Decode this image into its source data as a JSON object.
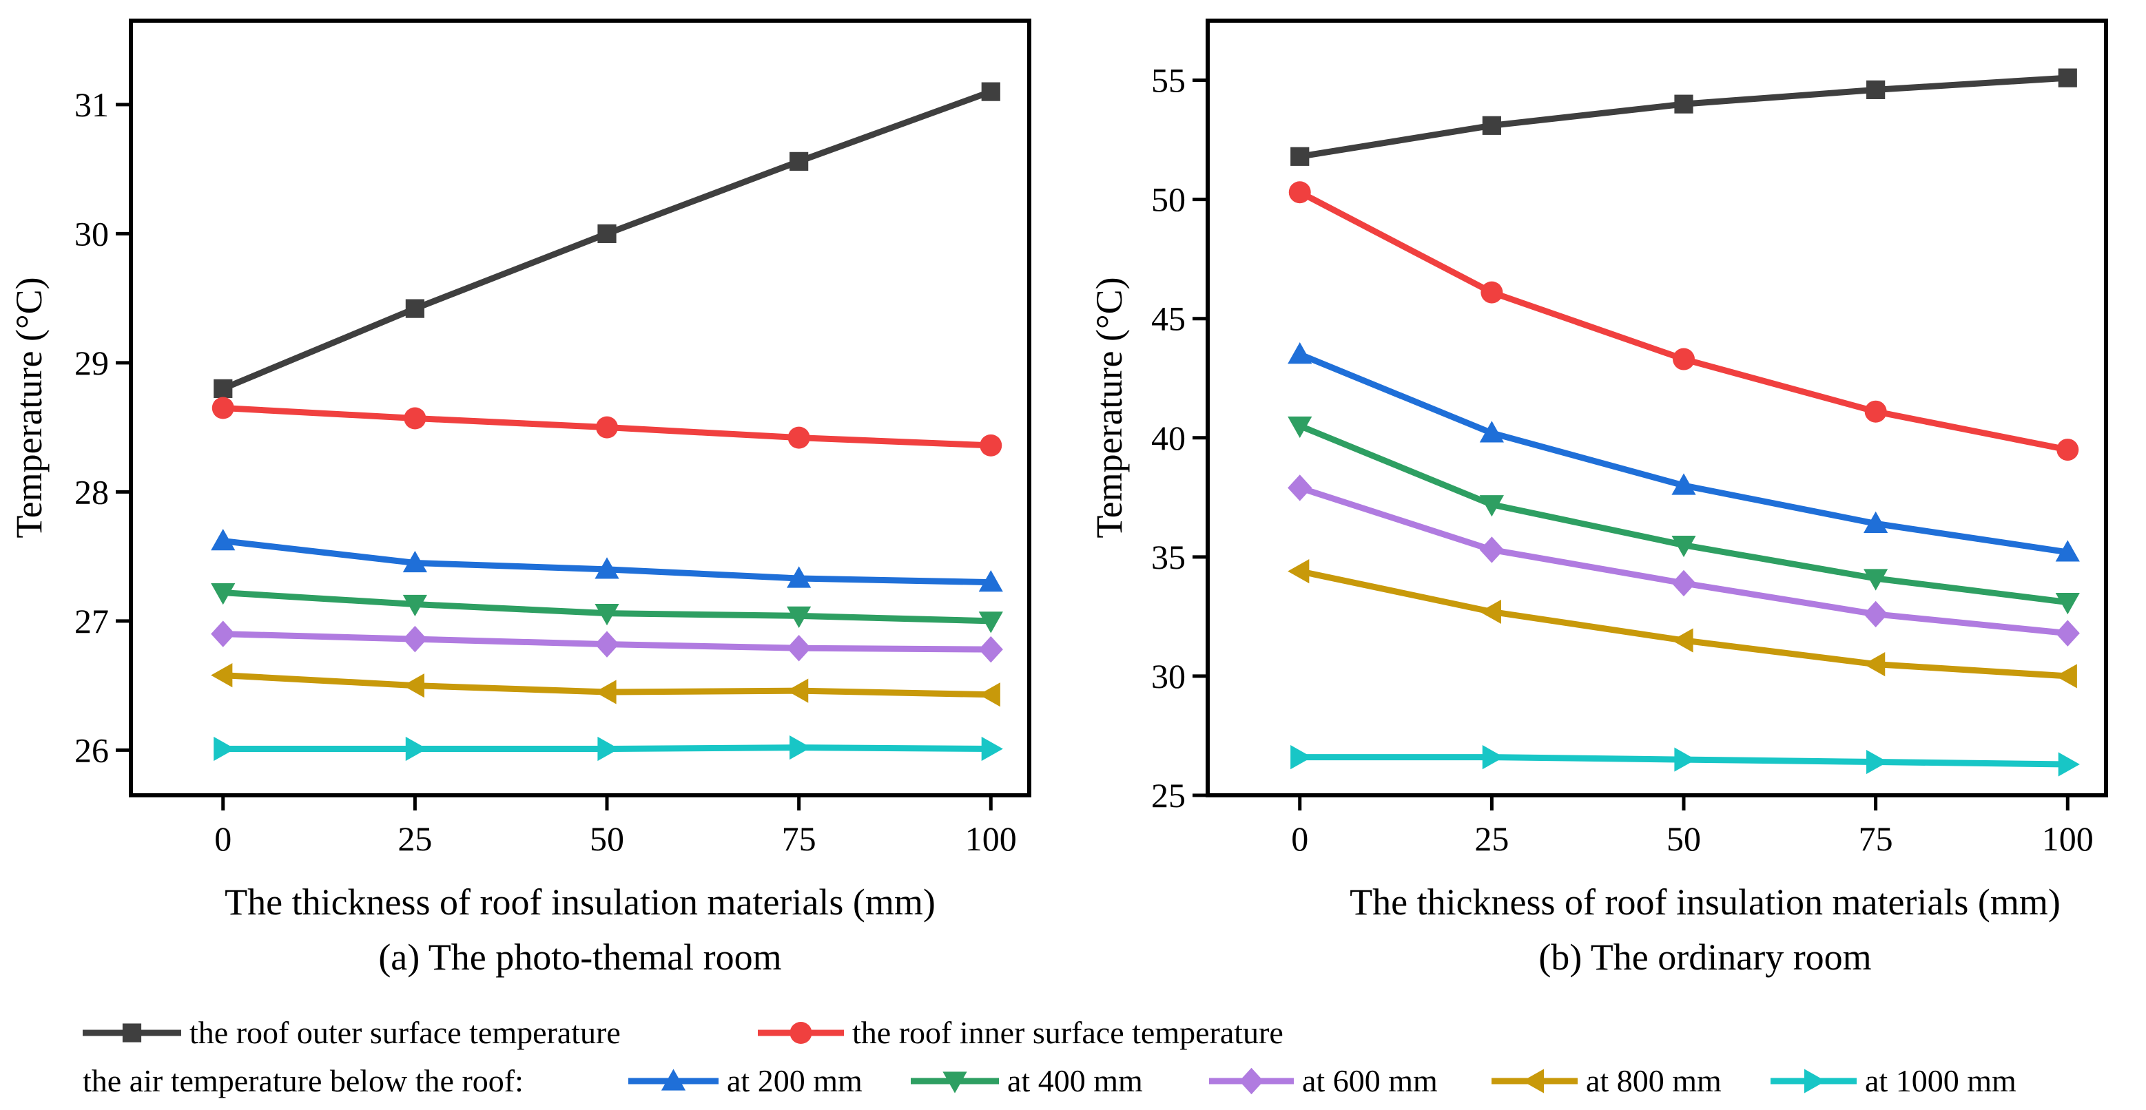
{
  "chart_data": [
    {
      "type": "line",
      "caption": "(a)  The photo-themal room",
      "xlabel": "The thickness of roof insulation materials (mm)",
      "ylabel": "Temperature (°C)",
      "x": [
        0,
        25,
        50,
        75,
        100
      ],
      "xlim": [
        -12,
        105
      ],
      "ylim": [
        25.65,
        31.65
      ],
      "xticks": [
        "0",
        "25",
        "50",
        "75",
        "100"
      ],
      "yticks": [
        "26",
        "27",
        "28",
        "29",
        "30",
        "31"
      ],
      "ytick_values": [
        26,
        27,
        28,
        29,
        30,
        31
      ],
      "series": [
        {
          "name": "the roof outer surface temperature",
          "values": [
            28.8,
            29.42,
            30.0,
            30.56,
            31.1
          ]
        },
        {
          "name": "the roof inner surface temperature",
          "values": [
            28.65,
            28.57,
            28.5,
            28.42,
            28.36
          ]
        },
        {
          "name": "at 200 mm",
          "values": [
            27.62,
            27.45,
            27.4,
            27.33,
            27.3
          ]
        },
        {
          "name": "at 400 mm",
          "values": [
            27.22,
            27.13,
            27.06,
            27.04,
            27.0
          ]
        },
        {
          "name": "at 600 mm",
          "values": [
            26.9,
            26.86,
            26.82,
            26.79,
            26.78
          ]
        },
        {
          "name": "at 800 mm",
          "values": [
            26.58,
            26.5,
            26.45,
            26.46,
            26.43
          ]
        },
        {
          "name": "at 1000 mm",
          "values": [
            26.01,
            26.01,
            26.01,
            26.02,
            26.01
          ]
        }
      ]
    },
    {
      "type": "line",
      "caption": "(b)  The ordinary room",
      "xlabel": "The thickness of roof insulation materials (mm)",
      "ylabel": "Temperature (°C)",
      "x": [
        0,
        25,
        50,
        75,
        100
      ],
      "xlim": [
        -12,
        105
      ],
      "ylim": [
        25.0,
        57.5
      ],
      "xticks": [
        "0",
        "25",
        "50",
        "75",
        "100"
      ],
      "yticks": [
        "25",
        "30",
        "35",
        "40",
        "45",
        "50",
        "55"
      ],
      "ytick_values": [
        25,
        30,
        35,
        40,
        45,
        50,
        55
      ],
      "series": [
        {
          "name": "the roof outer surface temperature",
          "values": [
            51.8,
            53.1,
            54.0,
            54.6,
            55.1
          ]
        },
        {
          "name": "the roof inner surface temperature",
          "values": [
            50.3,
            46.1,
            43.3,
            41.1,
            39.5
          ]
        },
        {
          "name": "at 200 mm",
          "values": [
            43.5,
            40.2,
            38.0,
            36.4,
            35.2
          ]
        },
        {
          "name": "at 400 mm",
          "values": [
            40.5,
            37.2,
            35.5,
            34.1,
            33.1
          ]
        },
        {
          "name": "at 600 mm",
          "values": [
            37.9,
            35.3,
            33.9,
            32.6,
            31.8
          ]
        },
        {
          "name": "at 800 mm",
          "values": [
            34.4,
            32.7,
            31.5,
            30.5,
            30.0
          ]
        },
        {
          "name": "at 1000 mm",
          "values": [
            26.6,
            26.6,
            26.5,
            26.4,
            26.3
          ]
        }
      ]
    }
  ],
  "legend": {
    "prefix": "the air temperature below the roof:",
    "entries": [
      {
        "label": "the roof outer surface temperature",
        "color": "#3f3f3f",
        "marker": "square"
      },
      {
        "label": "the roof inner surface temperature",
        "color": "#f0403f",
        "marker": "circle"
      },
      {
        "label": "at 200 mm",
        "color": "#1f6fd8",
        "marker": "triangle-up"
      },
      {
        "label": "at 400 mm",
        "color": "#2e9f62",
        "marker": "triangle-down"
      },
      {
        "label": "at 600 mm",
        "color": "#b07be0",
        "marker": "diamond"
      },
      {
        "label": "at 800 mm",
        "color": "#c8990a",
        "marker": "triangle-left"
      },
      {
        "label": "at 1000 mm",
        "color": "#18c6c6",
        "marker": "triangle-right"
      }
    ]
  }
}
